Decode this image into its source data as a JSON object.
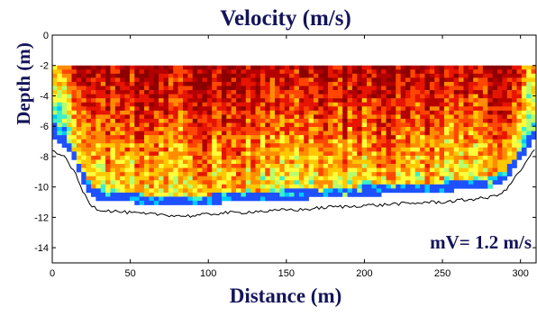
{
  "chart_data": {
    "type": "heatmap",
    "title": "Velocity (m/s)",
    "xlabel": "Distance (m)",
    "ylabel": "Depth (m)",
    "xlim": [
      0,
      310
    ],
    "ylim": [
      -15,
      0
    ],
    "x_ticks": [
      "0",
      "50",
      "100",
      "150",
      "200",
      "250",
      "300"
    ],
    "x_tick_values": [
      0,
      50,
      100,
      150,
      200,
      250,
      300
    ],
    "y_ticks": [
      "0",
      "-2",
      "-4",
      "-6",
      "-8",
      "-10",
      "-12",
      "-14"
    ],
    "y_tick_values": [
      0,
      -2,
      -4,
      -6,
      -8,
      -10,
      -12,
      -14
    ],
    "annotation": "mV= 1.2 m/s",
    "data_top_depth": -2,
    "colormap": [
      "#1e50ff",
      "#00c8ff",
      "#3cf0c8",
      "#b4ff6e",
      "#ffff3c",
      "#ffc800",
      "#ff8c00",
      "#ff4600",
      "#e61400",
      "#b40000",
      "#8c0000"
    ],
    "bed_profile": {
      "distance": [
        0,
        5,
        10,
        15,
        20,
        25,
        30,
        40,
        50,
        60,
        70,
        80,
        90,
        100,
        110,
        120,
        130,
        140,
        150,
        160,
        170,
        180,
        190,
        200,
        210,
        220,
        230,
        240,
        250,
        260,
        270,
        280,
        290,
        295,
        300,
        305,
        308
      ],
      "depth": [
        -7.6,
        -7.8,
        -8.3,
        -9.2,
        -10.4,
        -11.2,
        -11.5,
        -11.6,
        -11.7,
        -11.8,
        -11.8,
        -11.9,
        -11.9,
        -11.8,
        -11.7,
        -11.7,
        -11.6,
        -11.6,
        -11.5,
        -11.5,
        -11.4,
        -11.3,
        -11.3,
        -11.2,
        -11.2,
        -11.1,
        -11.1,
        -11.0,
        -11.0,
        -10.9,
        -10.8,
        -10.7,
        -10.3,
        -9.6,
        -8.9,
        -8.2,
        -7.6
      ]
    }
  }
}
